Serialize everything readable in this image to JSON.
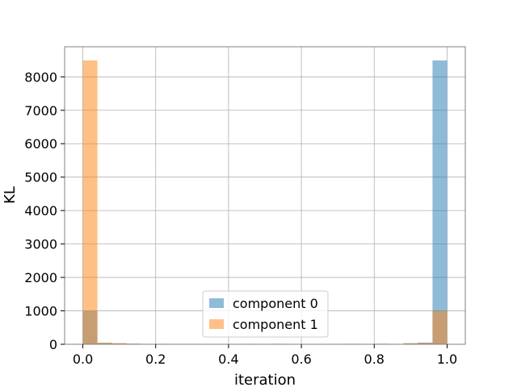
{
  "chart_data": {
    "type": "bar",
    "title": "",
    "xlabel": "iteration",
    "ylabel": "KL",
    "xlim": [
      -0.05,
      1.05
    ],
    "ylim": [
      0,
      8900
    ],
    "xticks": [
      0.0,
      0.2,
      0.4,
      0.6,
      0.8,
      1.0
    ],
    "xtick_labels": [
      "0.0",
      "0.2",
      "0.4",
      "0.6",
      "0.8",
      "1.0"
    ],
    "yticks": [
      0,
      1000,
      2000,
      3000,
      4000,
      5000,
      6000,
      7000,
      8000
    ],
    "ytick_labels": [
      "0",
      "1000",
      "2000",
      "3000",
      "4000",
      "5000",
      "6000",
      "7000",
      "8000"
    ],
    "grid": true,
    "legend_position": "lower-center",
    "bin_width": 0.04,
    "series": [
      {
        "name": "component 0",
        "color": "#1f77b4",
        "opacity": 0.5,
        "bins": [
          {
            "x": 0.0,
            "value": 1000
          },
          {
            "x": 0.04,
            "value": 40
          },
          {
            "x": 0.08,
            "value": 30
          },
          {
            "x": 0.12,
            "value": 20
          },
          {
            "x": 0.2,
            "value": 10
          },
          {
            "x": 0.52,
            "value": 15
          },
          {
            "x": 0.64,
            "value": 10
          },
          {
            "x": 0.72,
            "value": 15
          },
          {
            "x": 0.8,
            "value": 10
          },
          {
            "x": 0.88,
            "value": 30
          },
          {
            "x": 0.92,
            "value": 50
          },
          {
            "x": 0.96,
            "value": 8490
          }
        ]
      },
      {
        "name": "component 1",
        "color": "#ff7f0e",
        "opacity": 0.5,
        "bins": [
          {
            "x": 0.0,
            "value": 8490
          },
          {
            "x": 0.04,
            "value": 50
          },
          {
            "x": 0.08,
            "value": 30
          },
          {
            "x": 0.12,
            "value": 10
          },
          {
            "x": 0.2,
            "value": 15
          },
          {
            "x": 0.28,
            "value": 10
          },
          {
            "x": 0.44,
            "value": 15
          },
          {
            "x": 0.8,
            "value": 20
          },
          {
            "x": 0.88,
            "value": 30
          },
          {
            "x": 0.92,
            "value": 40
          },
          {
            "x": 0.96,
            "value": 1000
          }
        ]
      }
    ]
  }
}
